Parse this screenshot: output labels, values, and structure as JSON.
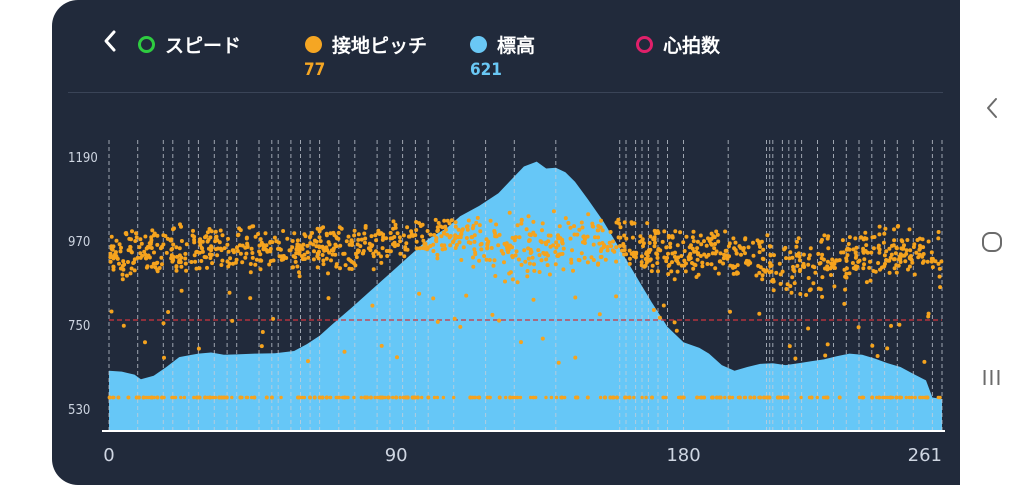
{
  "header": {
    "back_icon": "chevron-left-icon",
    "legend": [
      {
        "label": "スピード",
        "color": "#2ecc40",
        "style": "ring",
        "value": ""
      },
      {
        "label": "接地ピッチ",
        "color": "#f5a623",
        "style": "filled",
        "value": "77"
      },
      {
        "label": "標高",
        "color": "#6ac8f5",
        "style": "filled",
        "value": "621"
      },
      {
        "label": "心拍数",
        "color": "#e0206a",
        "style": "ring",
        "value": ""
      }
    ]
  },
  "nav": {
    "back_icon": "chevron-left-icon",
    "home_icon": "circle-home-icon",
    "recents_icon": "recents-icon",
    "recents_glyph": "III"
  },
  "colors": {
    "background": "#212a3b",
    "elevation_fill": "#66c7f7",
    "pitch_dots": "#f5a31e",
    "reference_line": "#d0343c",
    "marker_lines": "#c8ced8"
  },
  "chart_data": {
    "type": "area+scatter",
    "x_ticks": [
      "0",
      "90",
      "180",
      "261"
    ],
    "y_ticks": [
      "1190",
      "970",
      "750",
      "530"
    ],
    "xlim": [
      0,
      261
    ],
    "ylim": [
      530,
      1190
    ],
    "reference_line_y": 763,
    "series": [
      {
        "name": "標高",
        "kind": "area",
        "x": [
          0,
          4,
          8,
          10,
          14,
          18,
          22,
          26,
          28,
          32,
          36,
          40,
          46,
          52,
          58,
          62,
          66,
          70,
          76,
          82,
          88,
          94,
          100,
          106,
          110,
          116,
          122,
          126,
          130,
          134,
          137,
          140,
          143,
          146,
          150,
          155,
          160,
          165,
          170,
          175,
          180,
          185,
          188,
          192,
          196,
          200,
          204,
          208,
          212,
          216,
          220,
          224,
          228,
          232,
          236,
          240,
          244,
          248,
          252,
          256,
          258,
          261
        ],
        "y": [
          630,
          628,
          620,
          608,
          617,
          640,
          666,
          672,
          675,
          678,
          672,
          673,
          675,
          676,
          682,
          700,
          722,
          752,
          795,
          840,
          885,
          930,
          975,
          1005,
          1035,
          1062,
          1095,
          1130,
          1165,
          1178,
          1160,
          1162,
          1150,
          1125,
          1080,
          1020,
          950,
          880,
          810,
          745,
          705,
          690,
          675,
          645,
          630,
          640,
          648,
          650,
          645,
          650,
          655,
          660,
          668,
          675,
          672,
          662,
          650,
          640,
          622,
          605,
          560,
          556
        ]
      },
      {
        "name": "接地ピッチ",
        "kind": "scatter",
        "band": [
          [
            0,
            850,
            1000
          ],
          [
            20,
            880,
            1010
          ],
          [
            40,
            880,
            1010
          ],
          [
            60,
            880,
            1010
          ],
          [
            80,
            890,
            1010
          ],
          [
            95,
            930,
            1040
          ],
          [
            110,
            920,
            1040
          ],
          [
            120,
            870,
            1040
          ],
          [
            130,
            860,
            1050
          ],
          [
            140,
            870,
            1050
          ],
          [
            150,
            880,
            1040
          ],
          [
            160,
            910,
            1030
          ],
          [
            170,
            880,
            1020
          ],
          [
            180,
            860,
            1000
          ],
          [
            190,
            870,
            1000
          ],
          [
            200,
            860,
            1000
          ],
          [
            210,
            840,
            990
          ],
          [
            220,
            830,
            990
          ],
          [
            230,
            840,
            1000
          ],
          [
            240,
            870,
            1010
          ],
          [
            250,
            880,
            1010
          ],
          [
            261,
            850,
            990
          ]
        ],
        "low_values": [
          560,
          820,
          760,
          700,
          640
        ]
      }
    ],
    "marker_lines_x": [
      0,
      9,
      17,
      20,
      25,
      28,
      33,
      37,
      40,
      47,
      51,
      53,
      57,
      60,
      63,
      66,
      72,
      77,
      84,
      88,
      92,
      96,
      100,
      108,
      118,
      127,
      140,
      160,
      162,
      165,
      167,
      169,
      172,
      175,
      180,
      194,
      206,
      207,
      208,
      211,
      213,
      215,
      217,
      222,
      227,
      231,
      235,
      239,
      243,
      247,
      252,
      258,
      261
    ]
  }
}
